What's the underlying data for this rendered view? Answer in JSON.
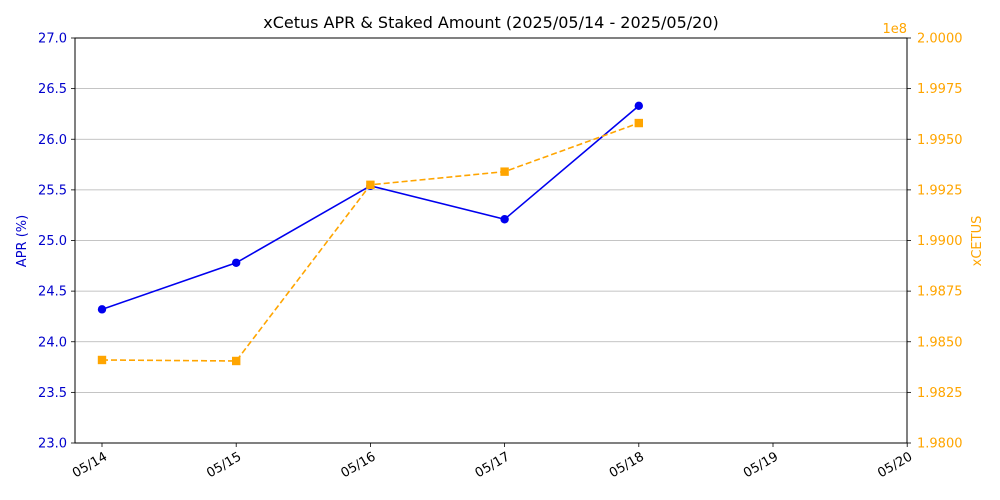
{
  "chart_data": {
    "type": "line",
    "title": "xCetus APR & Staked Amount (2025/05/14 - 2025/05/20)",
    "x": [
      "05/14",
      "05/15",
      "05/16",
      "05/17",
      "05/18"
    ],
    "xticks": [
      "05/14",
      "05/15",
      "05/16",
      "05/17",
      "05/18",
      "05/19",
      "05/20"
    ],
    "series": [
      {
        "name": "APR (%)",
        "axis": "left",
        "values": [
          24.32,
          24.78,
          25.54,
          25.21,
          26.33
        ],
        "color": "#0000ee",
        "style": "solid",
        "marker": "circle"
      },
      {
        "name": "xCETUS",
        "axis": "right",
        "values": [
          198410000,
          198405000,
          199275000,
          199340000,
          199580000
        ],
        "color": "#ffa500",
        "style": "dashed",
        "marker": "square"
      }
    ],
    "ylabel_left": "APR (%)",
    "ylim_left": [
      23.0,
      27.0
    ],
    "yticks_left": [
      "23.0",
      "23.5",
      "24.0",
      "24.5",
      "25.0",
      "25.5",
      "26.0",
      "26.5",
      "27.0"
    ],
    "ylabel_right": "xCETUS",
    "ylim_right": [
      198000000,
      200000000
    ],
    "yticks_right": [
      "1.9800",
      "1.9825",
      "1.9850",
      "1.9875",
      "1.9900",
      "1.9925",
      "1.9950",
      "1.9975",
      "2.0000"
    ],
    "right_axis_multiplier": "1e8",
    "grid": "horizontal"
  }
}
